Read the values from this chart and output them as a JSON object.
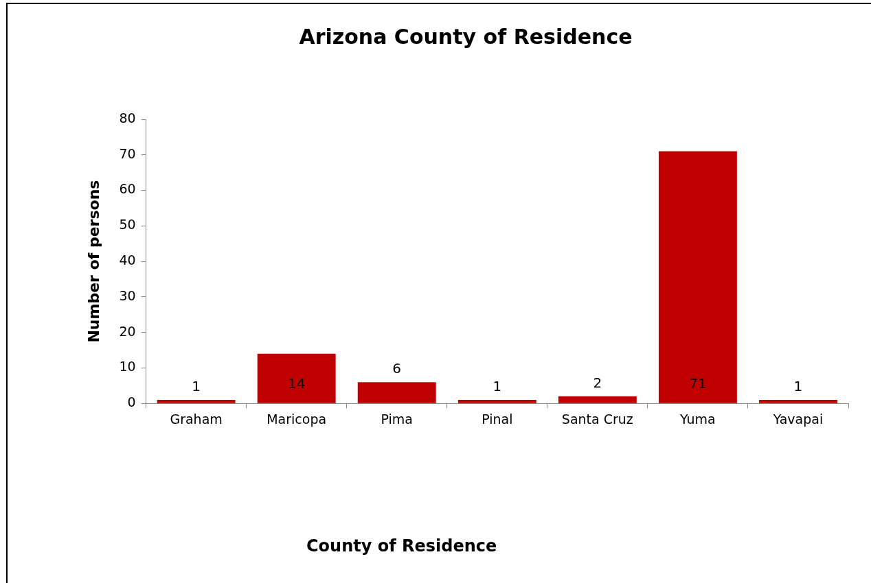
{
  "chart_data": {
    "type": "bar",
    "title": "Arizona County of Residence",
    "annotations": [
      "County of Residence"
    ],
    "ylabel": "Number of persons",
    "categories": [
      "Graham",
      "Maricopa",
      "Pima",
      "Pinal",
      "Santa Cruz",
      "Yuma",
      "Yavapai"
    ],
    "values": [
      1,
      14,
      6,
      1,
      2,
      71,
      1
    ],
    "color": "#c00000",
    "ylim": [
      0,
      80
    ],
    "yticks": [
      0,
      10,
      20,
      30,
      40,
      50,
      60,
      70,
      80
    ],
    "data_labels": true,
    "legend": false
  }
}
